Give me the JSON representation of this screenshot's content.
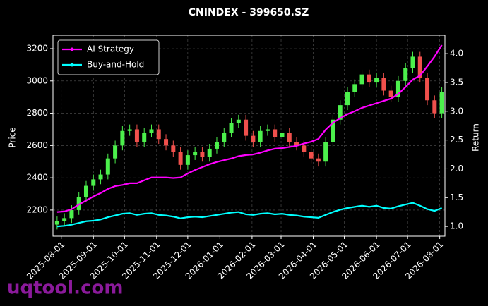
{
  "chart_data": {
    "type": "candlestick",
    "title": "CNINDEX - 399650.SZ",
    "ylabel": "Price",
    "y2label": "Return",
    "watermark": "uqtool.com",
    "x": [
      "2025-07-28",
      "2025-08-04",
      "2025-08-11",
      "2025-08-18",
      "2025-08-25",
      "2025-09-01",
      "2025-09-08",
      "2025-09-15",
      "2025-09-22",
      "2025-09-29",
      "2025-10-06",
      "2025-10-13",
      "2025-10-20",
      "2025-10-27",
      "2025-11-03",
      "2025-11-10",
      "2025-11-17",
      "2025-11-24",
      "2025-12-01",
      "2025-12-08",
      "2025-12-15",
      "2025-12-22",
      "2025-12-29",
      "2026-01-05",
      "2026-01-12",
      "2026-01-19",
      "2026-01-26",
      "2026-02-02",
      "2026-02-09",
      "2026-02-16",
      "2026-02-23",
      "2026-03-02",
      "2026-03-09",
      "2026-03-16",
      "2026-03-23",
      "2026-03-30",
      "2026-04-06",
      "2026-04-13",
      "2026-04-20",
      "2026-04-27",
      "2026-05-04",
      "2026-05-11",
      "2026-05-18",
      "2026-05-25",
      "2026-06-01",
      "2026-06-08",
      "2026-06-15",
      "2026-06-22",
      "2026-06-29",
      "2026-07-06",
      "2026-07-13",
      "2026-07-20",
      "2026-07-27",
      "2026-08-03"
    ],
    "open": [
      2110,
      2130,
      2150,
      2200,
      2280,
      2350,
      2390,
      2420,
      2520,
      2600,
      2690,
      2700,
      2620,
      2680,
      2700,
      2640,
      2600,
      2560,
      2480,
      2540,
      2560,
      2530,
      2580,
      2620,
      2680,
      2740,
      2760,
      2660,
      2620,
      2690,
      2700,
      2650,
      2680,
      2620,
      2600,
      2560,
      2520,
      2500,
      2620,
      2760,
      2850,
      2930,
      2980,
      3040,
      2990,
      3020,
      2940,
      2900,
      3000,
      3080,
      3150,
      3020,
      2880,
      2800
    ],
    "high": [
      2160,
      2180,
      2230,
      2310,
      2380,
      2420,
      2450,
      2550,
      2630,
      2720,
      2730,
      2730,
      2710,
      2730,
      2730,
      2670,
      2630,
      2590,
      2570,
      2590,
      2590,
      2610,
      2650,
      2710,
      2770,
      2790,
      2790,
      2690,
      2720,
      2730,
      2730,
      2710,
      2710,
      2650,
      2630,
      2590,
      2550,
      2650,
      2790,
      2880,
      2960,
      3010,
      3070,
      3070,
      3050,
      3050,
      2970,
      3030,
      3110,
      3180,
      3180,
      3050,
      2910,
      2960
    ],
    "low": [
      2080,
      2100,
      2120,
      2170,
      2250,
      2320,
      2360,
      2390,
      2490,
      2570,
      2660,
      2590,
      2590,
      2650,
      2610,
      2570,
      2530,
      2450,
      2450,
      2510,
      2500,
      2500,
      2550,
      2590,
      2650,
      2710,
      2630,
      2590,
      2590,
      2660,
      2620,
      2620,
      2590,
      2570,
      2530,
      2490,
      2470,
      2470,
      2590,
      2730,
      2820,
      2900,
      2950,
      2960,
      2960,
      2910,
      2870,
      2870,
      2970,
      3050,
      2990,
      2850,
      2770,
      2770
    ],
    "close": [
      2130,
      2150,
      2200,
      2280,
      2350,
      2390,
      2420,
      2520,
      2600,
      2690,
      2700,
      2620,
      2680,
      2700,
      2640,
      2600,
      2560,
      2480,
      2540,
      2560,
      2530,
      2580,
      2620,
      2680,
      2740,
      2760,
      2660,
      2620,
      2690,
      2700,
      2650,
      2680,
      2620,
      2600,
      2560,
      2520,
      2500,
      2620,
      2760,
      2850,
      2930,
      2980,
      3040,
      2990,
      3020,
      2940,
      2900,
      3000,
      3080,
      3150,
      3020,
      2880,
      2800,
      2930
    ],
    "up_color": "#4cf04c",
    "down_color": "#f0504c",
    "series": [
      {
        "name": "AI Strategy",
        "color": "#ff00ff",
        "axis": "y2",
        "values": [
          1.25,
          1.26,
          1.3,
          1.38,
          1.45,
          1.52,
          1.58,
          1.65,
          1.7,
          1.72,
          1.75,
          1.75,
          1.8,
          1.85,
          1.85,
          1.85,
          1.84,
          1.85,
          1.92,
          1.98,
          2.03,
          2.08,
          2.12,
          2.15,
          2.18,
          2.22,
          2.24,
          2.25,
          2.28,
          2.32,
          2.35,
          2.36,
          2.38,
          2.4,
          2.44,
          2.47,
          2.52,
          2.68,
          2.8,
          2.88,
          2.95,
          3.0,
          3.06,
          3.1,
          3.14,
          3.18,
          3.22,
          3.3,
          3.42,
          3.55,
          3.62,
          3.78,
          3.95,
          4.15
        ]
      },
      {
        "name": "Buy-and-Hold",
        "color": "#00ffff",
        "axis": "y2",
        "values": [
          1.0,
          1.01,
          1.03,
          1.06,
          1.09,
          1.1,
          1.12,
          1.16,
          1.19,
          1.22,
          1.23,
          1.2,
          1.22,
          1.23,
          1.2,
          1.19,
          1.17,
          1.14,
          1.16,
          1.17,
          1.16,
          1.18,
          1.2,
          1.22,
          1.24,
          1.25,
          1.21,
          1.2,
          1.22,
          1.23,
          1.21,
          1.22,
          1.2,
          1.19,
          1.17,
          1.16,
          1.15,
          1.2,
          1.25,
          1.29,
          1.32,
          1.34,
          1.36,
          1.34,
          1.36,
          1.32,
          1.31,
          1.35,
          1.38,
          1.41,
          1.36,
          1.3,
          1.27,
          1.32
        ]
      }
    ],
    "xlim": [
      "2025-07-24",
      "2026-08-06"
    ],
    "xticks": [
      "2025-08-01",
      "2025-09-01",
      "2025-10-01",
      "2025-11-01",
      "2025-12-01",
      "2026-01-01",
      "2026-02-01",
      "2026-03-01",
      "2026-04-01",
      "2026-05-01",
      "2026-06-01",
      "2026-07-01",
      "2026-08-01"
    ],
    "ylim": [
      2038,
      3283
    ],
    "yticks": [
      2200,
      2400,
      2600,
      2800,
      3000,
      3200
    ],
    "y2lim": [
      0.83,
      4.32
    ],
    "y2ticks": [
      {
        "value": 1,
        "label": "1.0"
      },
      1.5,
      {
        "value": 2,
        "label": "2.0"
      },
      2.5,
      {
        "value": 3,
        "label": "3.0"
      },
      3.5,
      {
        "value": 4,
        "label": "4.0"
      }
    ],
    "grid": true,
    "legend": "upper left"
  }
}
